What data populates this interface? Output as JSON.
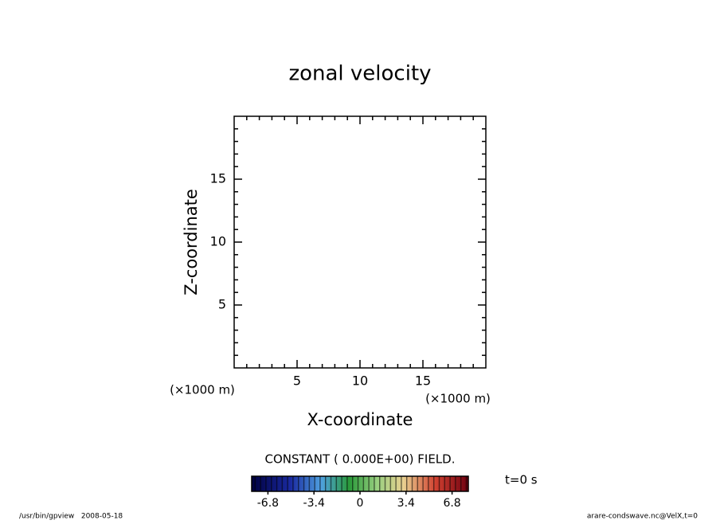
{
  "chart_data": {
    "type": "contour",
    "title": "zonal velocity",
    "xlabel": "X-coordinate",
    "ylabel": "Z-coordinate",
    "xunit": "(×1000 m)",
    "yunit": "(×1000 m)",
    "xlim": [
      0,
      20
    ],
    "ylim": [
      0,
      20
    ],
    "xticks": [
      5,
      10,
      15
    ],
    "yticks": [
      5,
      10,
      15
    ],
    "xminorticks": [
      1,
      2,
      3,
      4,
      6,
      7,
      8,
      9,
      11,
      12,
      13,
      14,
      16,
      17,
      18,
      19
    ],
    "yminorticks": [
      1,
      2,
      3,
      4,
      6,
      7,
      8,
      9,
      11,
      12,
      13,
      14,
      16,
      17,
      18,
      19
    ],
    "annotation": "CONSTANT ( 0.000E+00) FIELD.",
    "time_label": "t=0 s",
    "colorbar": {
      "lim": [
        -8,
        8
      ],
      "ticks": [
        -6.8,
        -3.4,
        0,
        3.4,
        6.8
      ]
    },
    "footer_left": "/usr/bin/gpview   2008-05-18",
    "footer_right": "arare-condswave.nc@VelX,t=0"
  }
}
